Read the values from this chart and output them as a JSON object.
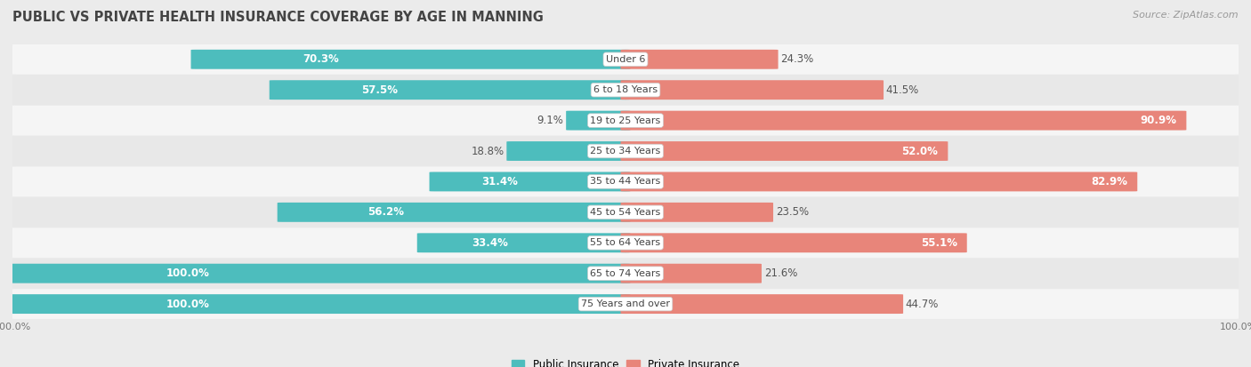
{
  "title": "PUBLIC VS PRIVATE HEALTH INSURANCE COVERAGE BY AGE IN MANNING",
  "source": "Source: ZipAtlas.com",
  "categories": [
    "Under 6",
    "6 to 18 Years",
    "19 to 25 Years",
    "25 to 34 Years",
    "35 to 44 Years",
    "45 to 54 Years",
    "55 to 64 Years",
    "65 to 74 Years",
    "75 Years and over"
  ],
  "public_values": [
    70.3,
    57.5,
    9.1,
    18.8,
    31.4,
    56.2,
    33.4,
    100.0,
    100.0
  ],
  "private_values": [
    24.3,
    41.5,
    90.9,
    52.0,
    82.9,
    23.5,
    55.1,
    21.6,
    44.7
  ],
  "public_color": "#4dbdbd",
  "private_color": "#e8857a",
  "private_color_dark": "#d96b5e",
  "background_color": "#ebebeb",
  "row_bg_light": "#f5f5f5",
  "row_bg_dark": "#e8e8e8",
  "bar_height": 0.62,
  "max_value": 100.0,
  "title_fontsize": 10.5,
  "label_fontsize": 8.5,
  "category_fontsize": 8.0,
  "legend_fontsize": 8.5,
  "source_fontsize": 8.0,
  "pub_inside_threshold": 0.3,
  "priv_inside_threshold": 0.5
}
